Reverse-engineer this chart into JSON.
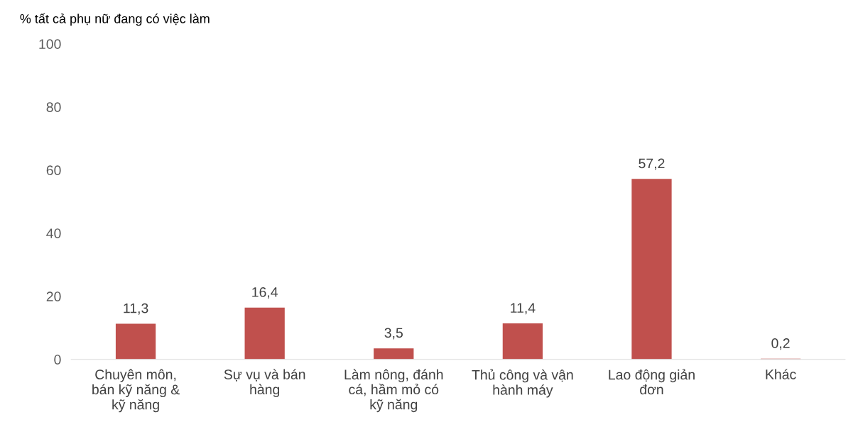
{
  "chart_data": {
    "type": "bar",
    "ylabel": "% tất cả phụ nữ đang có việc làm",
    "categories": [
      "Chuyên môn,\nbán kỹ năng &\nkỹ năng",
      "Sự vụ và bán\nhàng",
      "Làm nông, đánh\ncá, hầm mỏ có\nkỹ năng",
      "Thủ công và vận\nhành máy",
      "Lao động giản\nđơn",
      "Khác"
    ],
    "values": [
      11.3,
      16.4,
      3.5,
      11.4,
      57.2,
      0.2
    ],
    "value_labels": [
      "11,3",
      "16,4",
      "3,5",
      "11,4",
      "57,2",
      "0,2"
    ],
    "color": "#c0504d",
    "ylim": [
      0,
      100
    ],
    "yticks": [
      0,
      20,
      40,
      60,
      80,
      100
    ],
    "grid": false,
    "legend": false
  }
}
